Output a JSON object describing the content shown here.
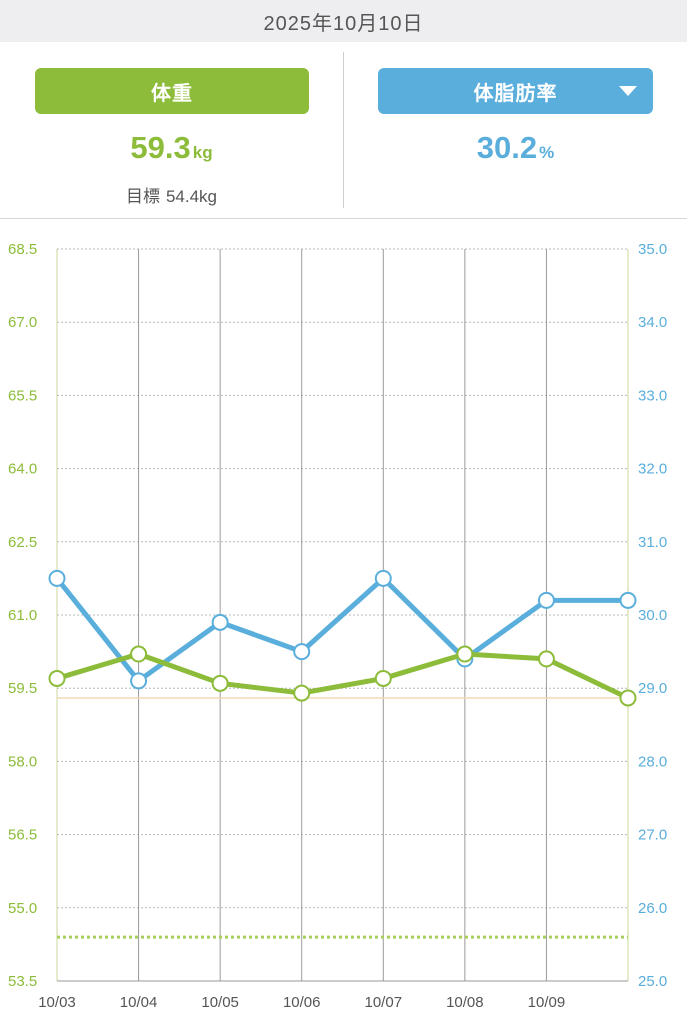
{
  "header": {
    "date": "2025年10月10日"
  },
  "weight_panel": {
    "tab_label": "体重",
    "value": "59.3",
    "unit": "kg",
    "goal_label": "目標",
    "goal_value": "54.4kg"
  },
  "fat_panel": {
    "tab_label": "体脂肪率",
    "dropdown_icon": "triangle-down-icon",
    "value": "30.2",
    "unit": "%"
  },
  "colors": {
    "weight": "#8cbc3a",
    "fat": "#5aaedc",
    "target_line": "#f2d9b5"
  },
  "chart_data": {
    "type": "line",
    "x": [
      "10/03",
      "10/04",
      "10/05",
      "10/06",
      "10/07",
      "10/08",
      "10/09",
      "10/10"
    ],
    "x_tick_labels": [
      "10/03",
      "10/04",
      "10/05",
      "10/06",
      "10/07",
      "10/08",
      "10/09"
    ],
    "left_axis": {
      "ylim": [
        53.5,
        68.5
      ],
      "ticks": [
        "68.5",
        "67.0",
        "65.5",
        "64.0",
        "62.5",
        "61.0",
        "59.5",
        "58.0",
        "56.5",
        "55.0",
        "53.5"
      ]
    },
    "right_axis": {
      "ylim": [
        25.0,
        35.0
      ],
      "ticks": [
        "35.0",
        "34.0",
        "33.0",
        "32.0",
        "31.0",
        "30.0",
        "29.0",
        "28.0",
        "27.0",
        "26.0",
        "25.0"
      ]
    },
    "series": [
      {
        "axis": "left",
        "color": "#8cbc3a",
        "values": [
          59.7,
          60.2,
          59.6,
          59.4,
          59.7,
          60.2,
          60.1,
          59.3
        ]
      },
      {
        "axis": "right",
        "color": "#5aaedc",
        "values": [
          30.5,
          29.1,
          29.9,
          29.5,
          30.5,
          29.4,
          30.2,
          30.2
        ]
      }
    ],
    "reference_lines": [
      {
        "axis": "left",
        "value": 54.4,
        "style": "dotted",
        "color": "#a8cf5a"
      },
      {
        "axis": "left",
        "value": 59.3,
        "style": "solid",
        "color": "#f2d9b5"
      }
    ],
    "grid": true
  }
}
